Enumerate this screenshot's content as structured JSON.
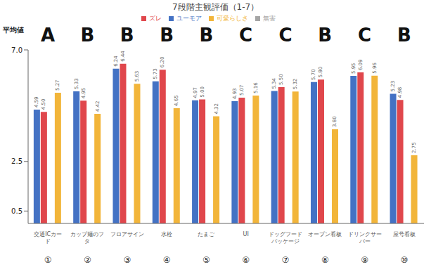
{
  "chart_data": {
    "type": "bar",
    "title": "7段階主観評価（1-7）",
    "y_label": "平均値",
    "categories": [
      "交通ICカード",
      "カップ麺のフタ",
      "フロアサイン",
      "水栓",
      "たまご",
      "UI",
      "ドッグフードパッケージ",
      "オープン看板",
      "ドリンクサーバー",
      "屋号看板"
    ],
    "numbers": [
      "①",
      "②",
      "③",
      "④",
      "⑤",
      "⑥",
      "⑦",
      "⑧",
      "⑨",
      "⑩"
    ],
    "groups": [
      "A",
      "B",
      "B",
      "B",
      "B",
      "C",
      "C",
      "B",
      "C",
      "B"
    ],
    "series": [
      {
        "name": "ユーモア",
        "color": "#4472c4",
        "values": [
          4.59,
          5.33,
          6.24,
          5.73,
          4.97,
          4.93,
          5.34,
          5.7,
          5.95,
          5.23
        ],
        "value_labels": [
          "4.59",
          "5.33",
          "6.24",
          "5.73",
          "4.97",
          "4.93",
          "5.34",
          "5.70",
          "5.95",
          "5.23"
        ]
      },
      {
        "name": "ズレ",
        "color": "#e0474c",
        "values": [
          4.5,
          4.95,
          6.44,
          6.2,
          5.0,
          5.07,
          5.5,
          5.8,
          6.09,
          4.98
        ],
        "value_labels": [
          "4.50",
          "4.95",
          "6.44",
          "6.20",
          "5.00",
          "5.07",
          "5.50",
          "5.80",
          "6.09",
          "4.98"
        ]
      },
      {
        "name": "無害",
        "color": "#a5a5a5",
        "values": [
          null,
          null,
          null,
          null,
          null,
          null,
          null,
          null,
          null,
          null
        ],
        "value_labels": [
          null,
          null,
          null,
          null,
          null,
          null,
          null,
          null,
          null,
          null
        ]
      },
      {
        "name": "可愛らしさ",
        "color": "#f2b53a",
        "values": [
          5.27,
          4.42,
          5.63,
          4.65,
          4.32,
          5.16,
          5.32,
          3.8,
          5.96,
          2.75
        ],
        "value_labels": [
          "5.27",
          "4.42",
          "5.63",
          "4.65",
          "4.32",
          "5.16",
          "5.32",
          "3.80",
          "5.96",
          "2.75"
        ]
      }
    ],
    "ylim": [
      0,
      7
    ],
    "yticks": [
      0.5,
      2.5,
      {
        "value": 7,
        "label": "7.0"
      }
    ],
    "grid": false,
    "legend": "top",
    "data_labels": true
  }
}
